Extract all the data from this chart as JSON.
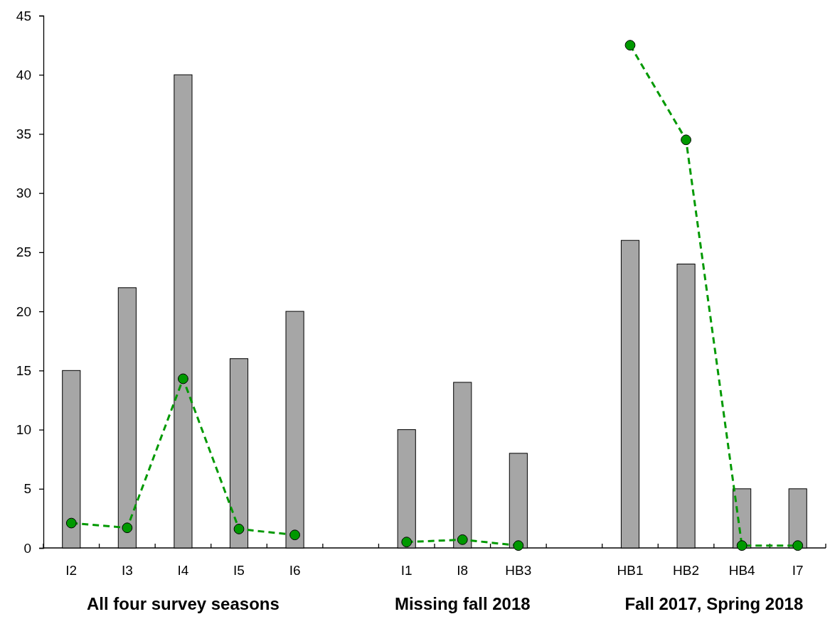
{
  "chart_data": {
    "type": "bar",
    "categories": [
      "I2",
      "I3",
      "I4",
      "I5",
      "I6",
      null,
      "I1",
      "I8",
      "HB3",
      null,
      "HB1",
      "HB2",
      "HB4",
      "I7"
    ],
    "series": [
      {
        "color": "#a6a6a6",
        "values": [
          15,
          22,
          40,
          16,
          20,
          null,
          10,
          14,
          8,
          null,
          26,
          24,
          5,
          5
        ]
      },
      {
        "type": "line",
        "color": "#009900",
        "marker": "circle",
        "line_style": "dashed",
        "values": [
          2.1,
          1.7,
          14.3,
          1.6,
          1.1,
          null,
          0.5,
          0.7,
          0.2,
          null,
          42.5,
          34.5,
          0.2,
          0.2
        ]
      }
    ],
    "ylim": [
      0,
      45
    ],
    "yticks": [
      0,
      5,
      10,
      15,
      20,
      25,
      30,
      35,
      40,
      45
    ],
    "grid": false,
    "annotations": [
      "All four survey seasons",
      "Missing fall 2018",
      "Fall 2017, Spring 2018"
    ]
  }
}
